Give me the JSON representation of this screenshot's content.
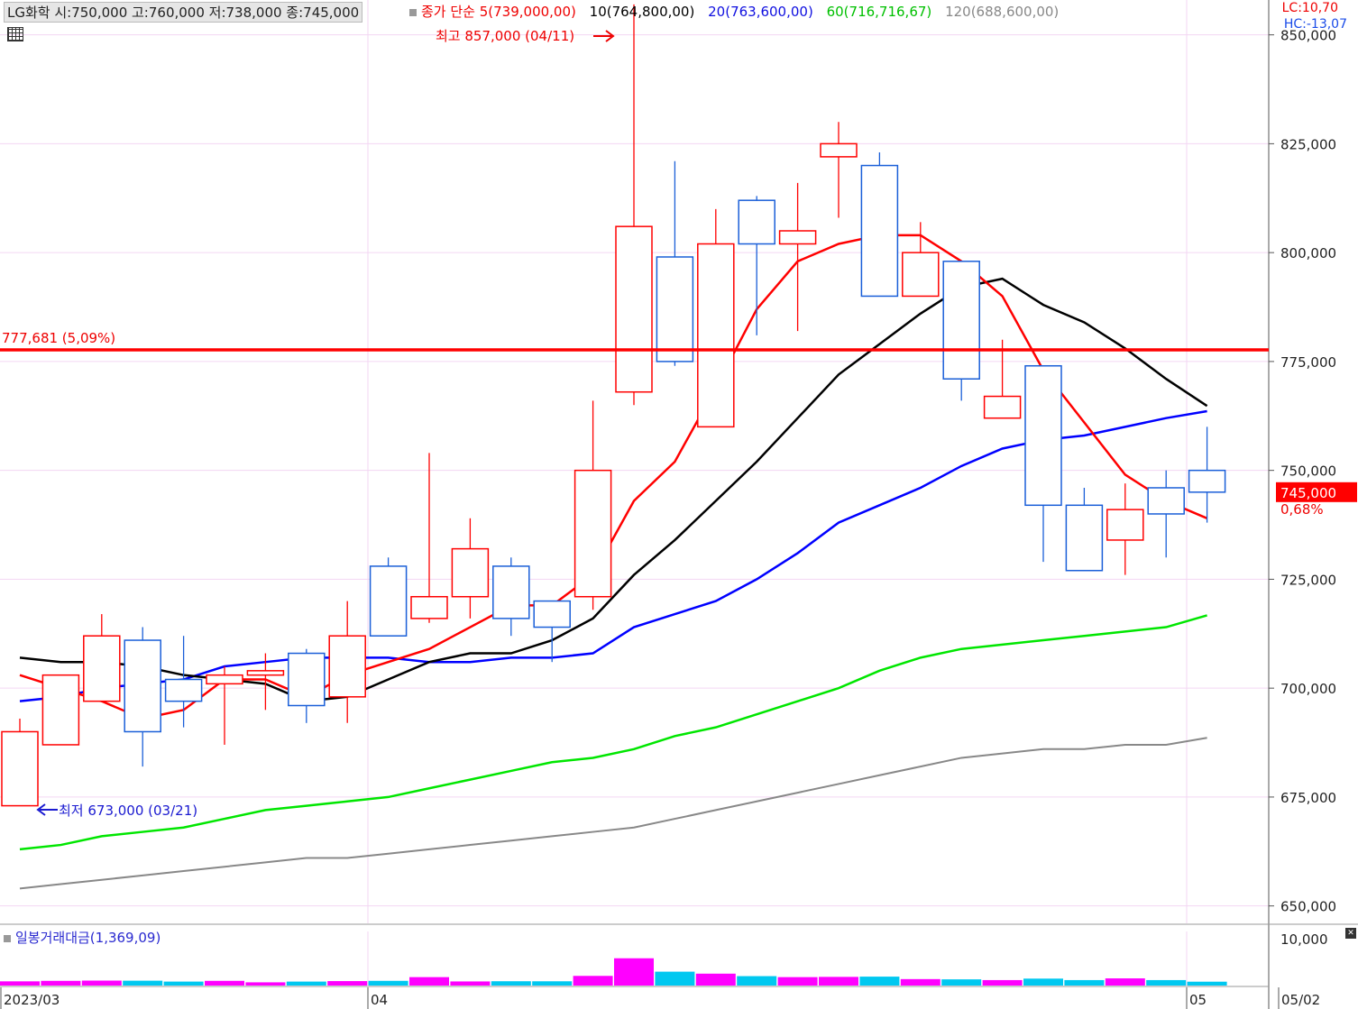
{
  "header": {
    "stock": "LG화학 시:750,000 고:760,000 저:738,000 종:745,000",
    "ma_title": "종가 단순 5(739,000,00)",
    "ma10": "10(764,800,00)",
    "ma20": "20(763,600,00)",
    "ma60": "60(716,716,67)",
    "ma120": "120(688,600,00)",
    "lc": "LC:10,70",
    "hc": "HC:-13,07"
  },
  "volume_label": "일봉거래대금(1,369,09)",
  "colors": {
    "up": "#ff0000",
    "down": "#1a5fd8",
    "ma5": "#ff0000",
    "ma10": "#000000",
    "ma20": "#0000ff",
    "ma60": "#00e600",
    "ma120": "#888888",
    "vol_up": "#ff00ff",
    "vol_down": "#00c8f0",
    "hline": "#ff0000"
  },
  "chart_data": {
    "type": "candlestick",
    "ylim": [
      646000,
      858000
    ],
    "yticks": [
      "850,000",
      "825,000",
      "800,000",
      "775,000",
      "750,000",
      "725,000",
      "700,000",
      "675,000",
      "650,000"
    ],
    "ytick_values": [
      850000,
      825000,
      800000,
      775000,
      750000,
      725000,
      700000,
      675000,
      650000
    ],
    "xlabels": [
      "2023/03",
      "04",
      "05",
      "05/02"
    ],
    "candles": [
      {
        "o": 673000,
        "h": 693000,
        "l": 673000,
        "c": 690000
      },
      {
        "o": 687000,
        "h": 703000,
        "l": 687000,
        "c": 703000
      },
      {
        "o": 697000,
        "h": 717000,
        "l": 697000,
        "c": 712000
      },
      {
        "o": 711000,
        "h": 714000,
        "l": 682000,
        "c": 690000
      },
      {
        "o": 702000,
        "h": 712000,
        "l": 691000,
        "c": 697000
      },
      {
        "o": 701000,
        "h": 705000,
        "l": 687000,
        "c": 703000
      },
      {
        "o": 703000,
        "h": 708000,
        "l": 695000,
        "c": 704000
      },
      {
        "o": 708000,
        "h": 709000,
        "l": 692000,
        "c": 696000
      },
      {
        "o": 698000,
        "h": 720000,
        "l": 692000,
        "c": 712000
      },
      {
        "o": 728000,
        "h": 730000,
        "l": 712000,
        "c": 712000
      },
      {
        "o": 716000,
        "h": 754000,
        "l": 715000,
        "c": 721000
      },
      {
        "o": 721000,
        "h": 739000,
        "l": 716000,
        "c": 732000
      },
      {
        "o": 728000,
        "h": 730000,
        "l": 712000,
        "c": 716000
      },
      {
        "o": 720000,
        "h": 720000,
        "l": 706000,
        "c": 714000
      },
      {
        "o": 721000,
        "h": 766000,
        "l": 718000,
        "c": 750000
      },
      {
        "o": 768000,
        "h": 857000,
        "l": 765000,
        "c": 806000
      },
      {
        "o": 799000,
        "h": 821000,
        "l": 774000,
        "c": 775000
      },
      {
        "o": 760000,
        "h": 810000,
        "l": 760000,
        "c": 802000
      },
      {
        "o": 812000,
        "h": 813000,
        "l": 781000,
        "c": 802000
      },
      {
        "o": 802000,
        "h": 816000,
        "l": 782000,
        "c": 805000
      },
      {
        "o": 822000,
        "h": 830000,
        "l": 808000,
        "c": 825000
      },
      {
        "o": 820000,
        "h": 823000,
        "l": 790000,
        "c": 790000
      },
      {
        "o": 790000,
        "h": 807000,
        "l": 790000,
        "c": 800000
      },
      {
        "o": 798000,
        "h": 798000,
        "l": 766000,
        "c": 771000
      },
      {
        "o": 762000,
        "h": 780000,
        "l": 762000,
        "c": 767000
      },
      {
        "o": 774000,
        "h": 774000,
        "l": 729000,
        "c": 742000
      },
      {
        "o": 742000,
        "h": 746000,
        "l": 727000,
        "c": 727000
      },
      {
        "o": 734000,
        "h": 747000,
        "l": 726000,
        "c": 741000
      },
      {
        "o": 746000,
        "h": 750000,
        "l": 730000,
        "c": 740000
      },
      {
        "o": 750000,
        "h": 760000,
        "l": 738000,
        "c": 745000
      }
    ],
    "ma5": [
      703000,
      700000,
      697000,
      693000,
      695000,
      702000,
      702000,
      698000,
      703000,
      706000,
      709000,
      714000,
      719000,
      719000,
      726000,
      743000,
      752000,
      769000,
      787000,
      798000,
      802000,
      804000,
      804000,
      798000,
      790000,
      773000,
      761000,
      749000,
      743000,
      739000
    ],
    "ma10": [
      707000,
      706000,
      706000,
      705000,
      703000,
      702000,
      701000,
      697000,
      698000,
      702000,
      706000,
      708000,
      708000,
      711000,
      716000,
      726000,
      734000,
      743000,
      752000,
      762000,
      772000,
      779000,
      786000,
      792000,
      794000,
      788000,
      784000,
      778000,
      771000,
      764800
    ],
    "ma20": [
      697000,
      698000,
      700000,
      701000,
      702000,
      705000,
      706000,
      707000,
      707000,
      707000,
      706000,
      706000,
      707000,
      707000,
      708000,
      714000,
      717000,
      720000,
      725000,
      731000,
      738000,
      742000,
      746000,
      751000,
      755000,
      757000,
      758000,
      760000,
      762000,
      763600
    ],
    "ma60": [
      663000,
      664000,
      666000,
      667000,
      668000,
      670000,
      672000,
      673000,
      674000,
      675000,
      677000,
      679000,
      681000,
      683000,
      684000,
      686000,
      689000,
      691000,
      694000,
      697000,
      700000,
      704000,
      707000,
      709000,
      710000,
      711000,
      712000,
      713000,
      714000,
      716716
    ],
    "ma120": [
      654000,
      655000,
      656000,
      657000,
      658000,
      659000,
      660000,
      661000,
      661000,
      662000,
      663000,
      664000,
      665000,
      666000,
      667000,
      668000,
      670000,
      672000,
      674000,
      676000,
      678000,
      680000,
      682000,
      684000,
      685000,
      686000,
      686000,
      687000,
      687000,
      688600
    ],
    "volume_ymax": 10000,
    "volume_ytick": "10,000",
    "volume": [
      850,
      950,
      1000,
      980,
      800,
      950,
      650,
      800,
      900,
      950,
      1700,
      830,
      870,
      860,
      1950,
      5500,
      2800,
      2400,
      1900,
      1700,
      1750,
      1800,
      1300,
      1250,
      1100,
      1400,
      1100,
      1450,
      1100,
      780
    ],
    "hline": {
      "value": 777681,
      "label": "777,681 (5,09%)"
    },
    "high_note": "최고 857,000 (04/11)",
    "low_note": "최저 673,000 (03/21)",
    "last_price": "745,000",
    "last_change": "0,68%"
  }
}
